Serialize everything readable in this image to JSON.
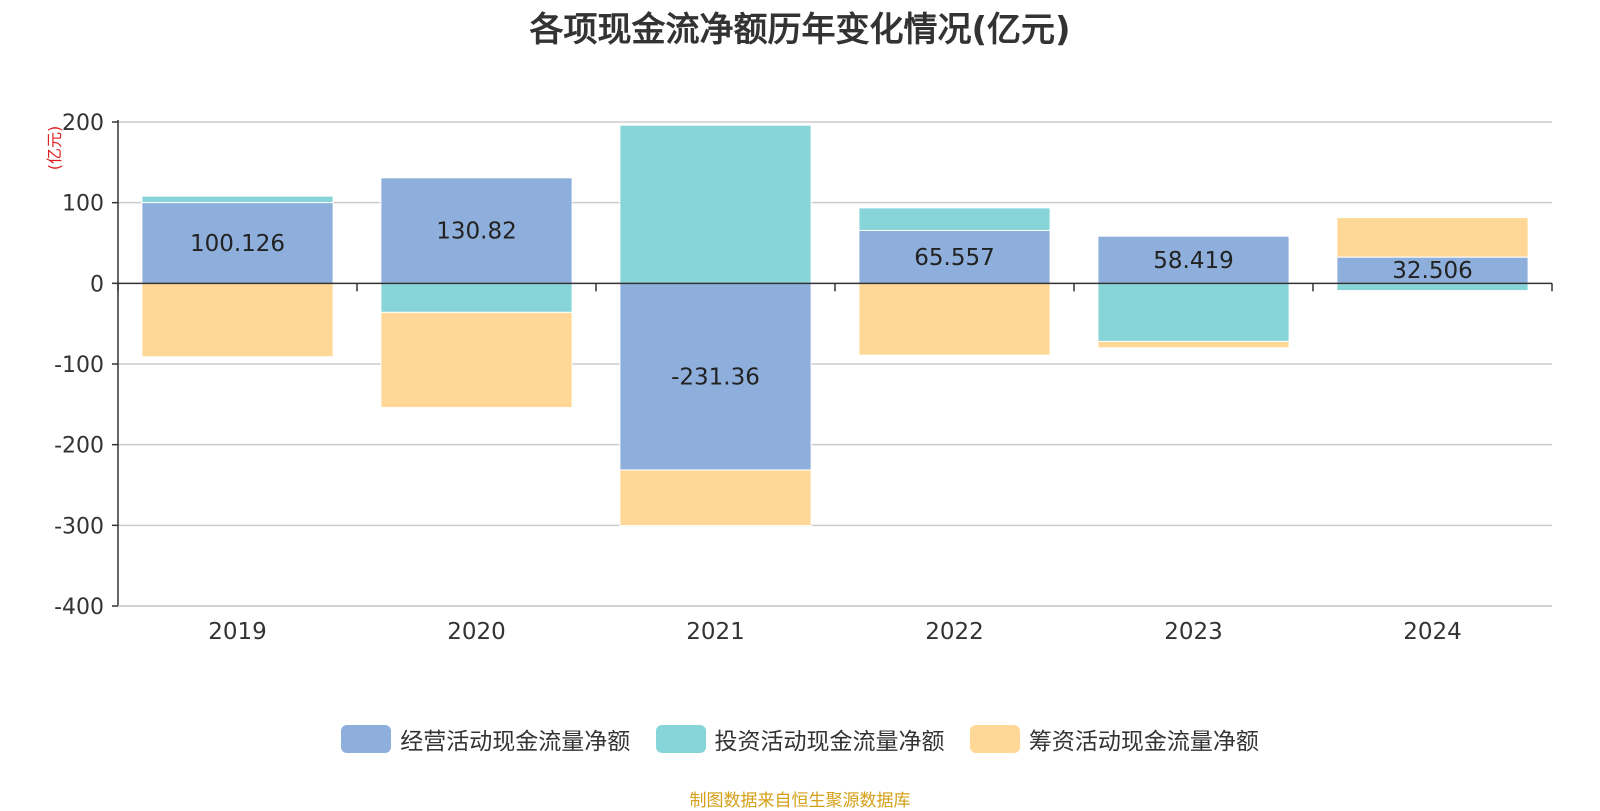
{
  "chart_data": {
    "type": "bar",
    "stacked": true,
    "title": "各项现金流净额历年变化情况(亿元)",
    "ylabel": "(亿元)",
    "ylim": [
      -400,
      200
    ],
    "yticks": [
      200,
      100,
      0,
      -100,
      -200,
      -300,
      -400
    ],
    "categories": [
      "2019",
      "2020",
      "2021",
      "2022",
      "2023",
      "2024"
    ],
    "series": [
      {
        "name": "经营活动现金流量净额",
        "color": "#8eaedc",
        "values": [
          100.126,
          130.82,
          -231.36,
          65.557,
          58.419,
          32.506
        ],
        "labels": [
          "100.126",
          "130.82",
          "-231.36",
          "65.557",
          "58.419",
          "32.506"
        ]
      },
      {
        "name": "投资活动现金流量净额",
        "color": "#87d5d9",
        "values": [
          8,
          -36,
          196,
          28,
          -72,
          -9
        ]
      },
      {
        "name": "筹资活动现金流量净额",
        "color": "#ffd897",
        "values": [
          -91,
          -118,
          -69,
          -89,
          -8,
          49
        ]
      }
    ],
    "grid": true,
    "legend_position": "bottom"
  },
  "source_note": "制图数据来自恒生聚源数据库"
}
